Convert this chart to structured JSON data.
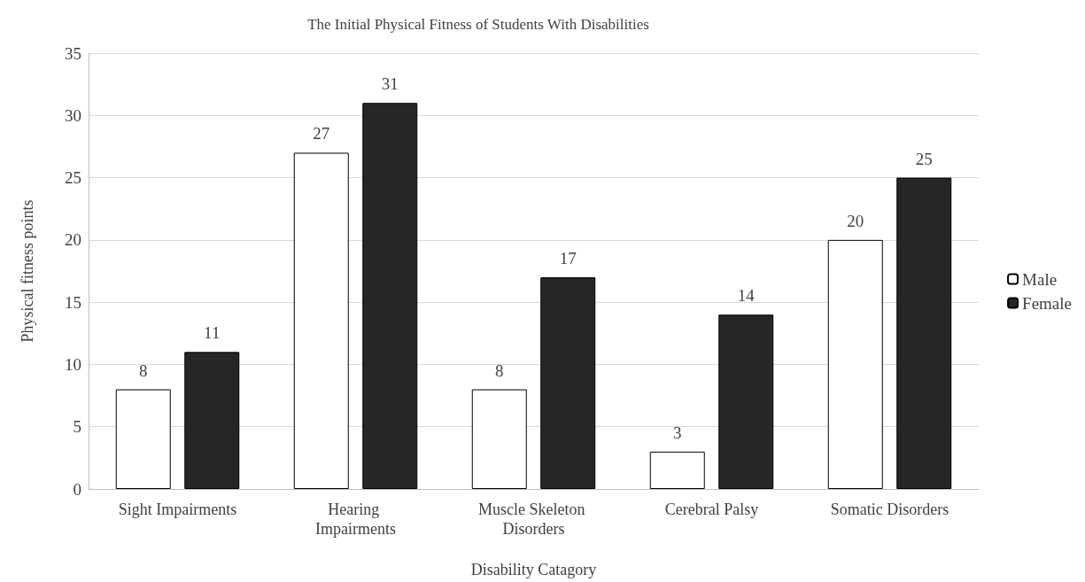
{
  "chart_data": {
    "type": "bar",
    "title": "The Initial Physical Fitness of Students With Disabilities",
    "xlabel": "Disability Catagory",
    "ylabel": "Physical fitness points",
    "categories": [
      "Sight Impairments",
      "Hearing Impairments",
      "Muscle Skeleton Disorders",
      "Cerebral Palsy",
      "Somatic Disorders"
    ],
    "series": [
      {
        "name": "Male",
        "color": "#ffffff",
        "values": [
          8,
          27,
          8,
          3,
          20
        ]
      },
      {
        "name": "Female",
        "color": "#262626",
        "values": [
          11,
          31,
          17,
          14,
          25
        ]
      }
    ],
    "ylim": [
      0,
      35
    ],
    "yticks": [
      0,
      5,
      10,
      15,
      20,
      25,
      30,
      35
    ],
    "grid": "y",
    "legend": "right",
    "data_labels": true
  }
}
